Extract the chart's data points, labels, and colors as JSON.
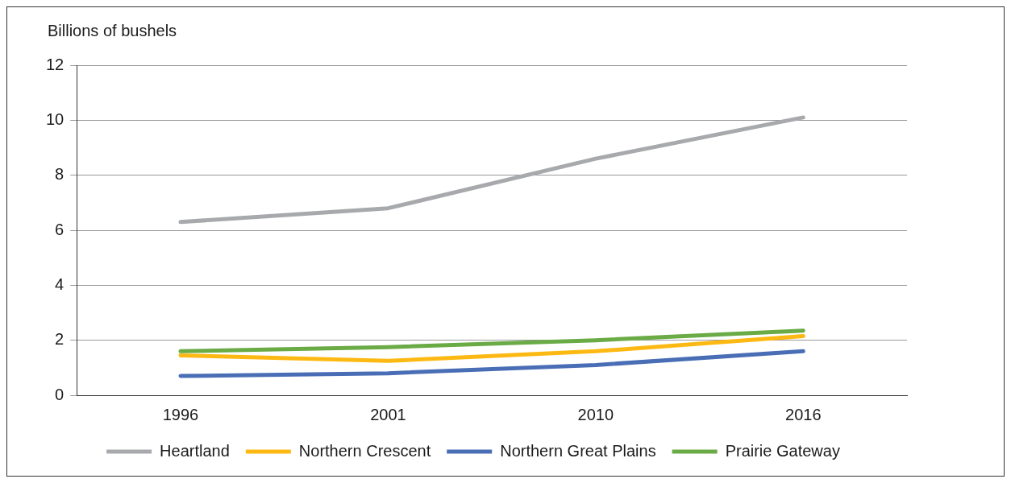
{
  "chart_data": {
    "type": "line",
    "ylabel": "Billions of bushels",
    "categories": [
      "1996",
      "2001",
      "2010",
      "2016"
    ],
    "series": [
      {
        "name": "Heartland",
        "color": "#a7a9ac",
        "values": [
          6.3,
          6.8,
          8.6,
          10.1
        ]
      },
      {
        "name": "Northern Crescent",
        "color": "#fdb913",
        "values": [
          1.45,
          1.25,
          1.6,
          2.15
        ]
      },
      {
        "name": "Northern Great Plains",
        "color": "#4a6eb5",
        "values": [
          0.7,
          0.8,
          1.1,
          1.6
        ]
      },
      {
        "name": "Prairie Gateway",
        "color": "#6aab46",
        "values": [
          1.6,
          1.75,
          2.0,
          2.35
        ]
      }
    ],
    "ylim": [
      0,
      12
    ],
    "yticks": [
      0,
      2,
      4,
      6,
      8,
      10,
      12
    ],
    "grid": "y",
    "legend": "bottom",
    "marker": "none",
    "line_style": "solid"
  }
}
